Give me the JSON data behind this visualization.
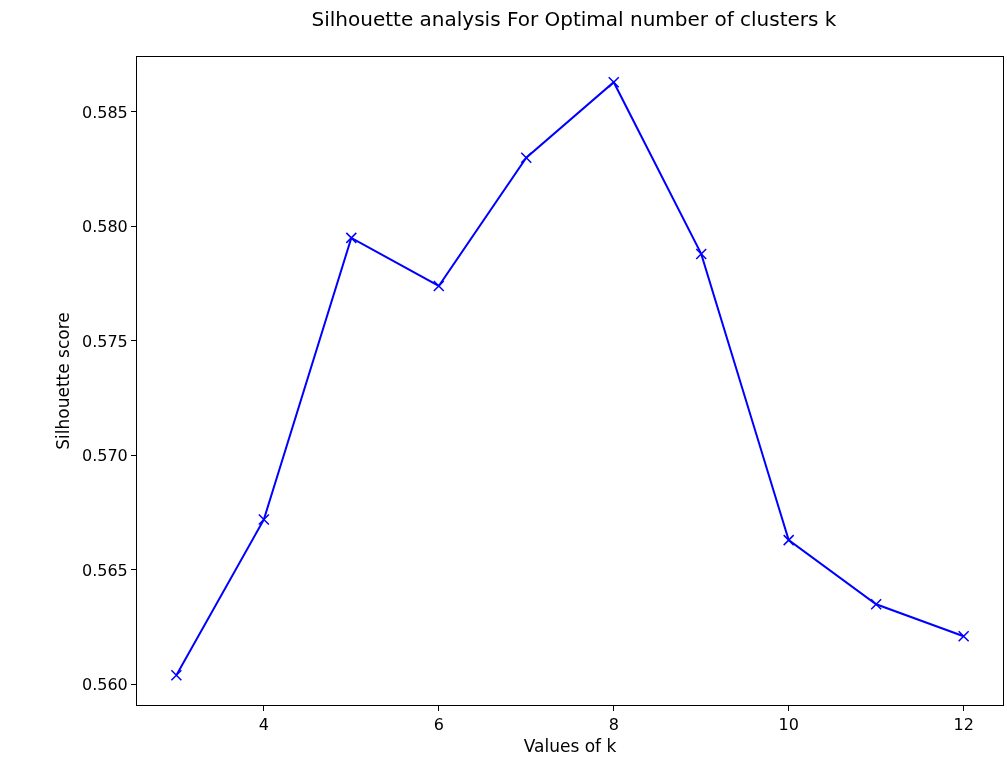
{
  "chart_data": {
    "type": "line",
    "title": "Silhouette analysis For Optimal number of clusters k",
    "xlabel": "Values of k",
    "ylabel": "Silhouette score",
    "x": [
      3,
      4,
      5,
      6,
      7,
      8,
      9,
      10,
      11,
      12
    ],
    "series": [
      {
        "color": "#0000ff",
        "values": [
          0.5604,
          0.5672,
          0.5795,
          0.5774,
          0.583,
          0.5863,
          0.5788,
          0.5663,
          0.5635,
          0.5621
        ]
      }
    ],
    "xlim": [
      2.55,
      12.45
    ],
    "xticks": [
      4,
      6,
      8,
      10,
      12
    ],
    "ylim": [
      0.5591,
      0.5874
    ],
    "yticks": [
      {
        "value": 0.56,
        "label": "0.560"
      },
      {
        "value": 0.565,
        "label": "0.565"
      },
      {
        "value": 0.57,
        "label": "0.570"
      },
      {
        "value": 0.575,
        "label": "0.575"
      },
      {
        "value": 0.58,
        "label": "0.580"
      },
      {
        "value": 0.585,
        "label": "0.585"
      }
    ],
    "marker": "cross",
    "line_style": "solid"
  }
}
